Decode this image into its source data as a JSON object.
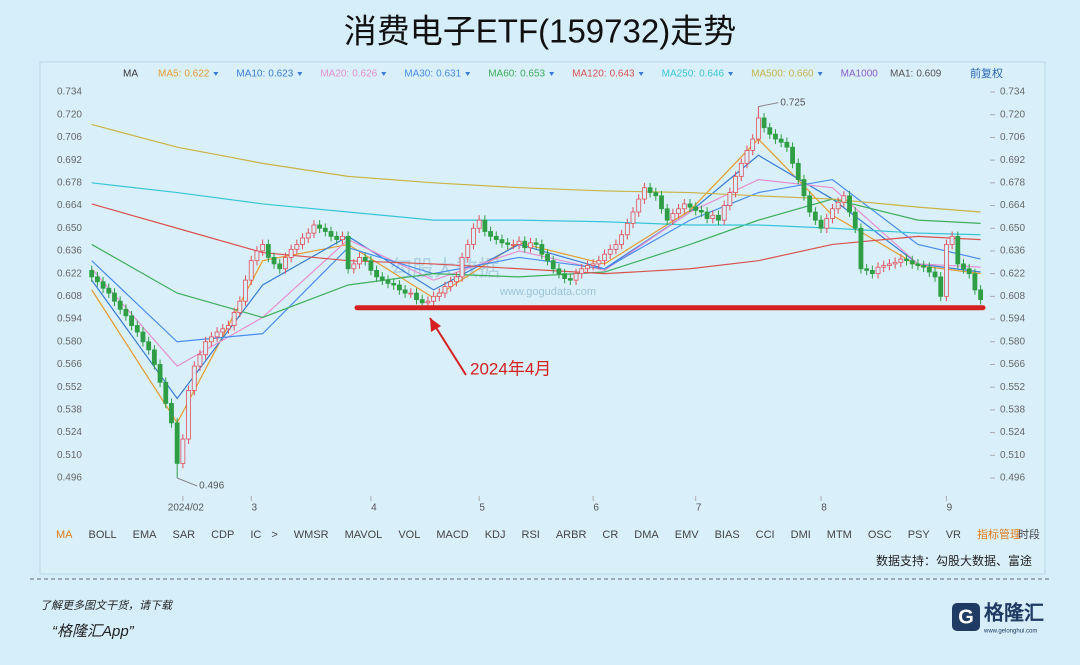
{
  "chart_data": {
    "type": "candlestick",
    "title": "消费电子ETF(159732)走势",
    "toolbar": {
      "adjust": "前复权",
      "ma1": {
        "name": "MA1:",
        "last": 0.609
      }
    },
    "xlim": [
      -1,
      158
    ],
    "ylim": [
      0.486,
      0.744
    ],
    "yticks": [
      0.496,
      {
        "value": 0.51,
        "label": "0.510"
      },
      0.524,
      0.538,
      0.552,
      0.566,
      {
        "value": 0.58,
        "label": "0.580"
      },
      0.594,
      0.608,
      0.622,
      0.636,
      {
        "value": 0.65,
        "label": "0.650"
      },
      0.664,
      0.678,
      0.692,
      0.706,
      {
        "value": 0.72,
        "label": "0.720"
      },
      0.734
    ],
    "xticks": [
      {
        "value": 16,
        "label": "2024/02"
      },
      {
        "value": 28,
        "label": "3"
      },
      {
        "value": 49,
        "label": "4"
      },
      {
        "value": 68,
        "label": "5"
      },
      {
        "value": 88,
        "label": "6"
      },
      {
        "value": 106,
        "label": "7"
      },
      {
        "value": 128,
        "label": "8"
      },
      {
        "value": 150,
        "label": "9"
      }
    ],
    "up_color": "#e0505a",
    "down_color": "#2f9e44",
    "candles": [
      [
        0.624,
        0.627,
        0.617,
        0.62
      ],
      [
        0.62,
        0.623,
        0.614,
        0.617
      ],
      [
        0.617,
        0.62,
        0.61,
        0.613
      ],
      [
        0.613,
        0.616,
        0.607,
        0.61
      ],
      [
        0.61,
        0.613,
        0.602,
        0.605
      ],
      [
        0.605,
        0.608,
        0.597,
        0.6
      ],
      [
        0.6,
        0.603,
        0.593,
        0.596
      ],
      [
        0.596,
        0.599,
        0.587,
        0.59
      ],
      [
        0.59,
        0.593,
        0.583,
        0.586
      ],
      [
        0.586,
        0.589,
        0.577,
        0.58
      ],
      [
        0.58,
        0.583,
        0.572,
        0.575
      ],
      [
        0.575,
        0.578,
        0.563,
        0.566
      ],
      [
        0.566,
        0.569,
        0.552,
        0.555
      ],
      [
        0.555,
        0.558,
        0.539,
        0.542
      ],
      [
        0.542,
        0.545,
        0.527,
        0.53
      ],
      [
        0.53,
        0.533,
        0.496,
        0.505
      ],
      [
        0.505,
        0.523,
        0.502,
        0.52
      ],
      [
        0.52,
        0.553,
        0.517,
        0.55
      ],
      [
        0.55,
        0.568,
        0.547,
        0.565
      ],
      [
        0.565,
        0.575,
        0.562,
        0.572
      ],
      [
        0.572,
        0.583,
        0.569,
        0.58
      ],
      [
        0.58,
        0.586,
        0.577,
        0.583
      ],
      [
        0.583,
        0.589,
        0.58,
        0.586
      ],
      [
        0.586,
        0.591,
        0.583,
        0.588
      ],
      [
        0.588,
        0.593,
        0.585,
        0.59
      ],
      [
        0.59,
        0.601,
        0.587,
        0.598
      ],
      [
        0.598,
        0.608,
        0.595,
        0.605
      ],
      [
        0.605,
        0.621,
        0.602,
        0.618
      ],
      [
        0.618,
        0.633,
        0.615,
        0.63
      ],
      [
        0.63,
        0.639,
        0.627,
        0.636
      ],
      [
        0.636,
        0.643,
        0.633,
        0.64
      ],
      [
        0.64,
        0.643,
        0.629,
        0.632
      ],
      [
        0.632,
        0.635,
        0.625,
        0.628
      ],
      [
        0.628,
        0.631,
        0.622,
        0.625
      ],
      [
        0.625,
        0.635,
        0.622,
        0.632
      ],
      [
        0.632,
        0.64,
        0.629,
        0.637
      ],
      [
        0.637,
        0.643,
        0.634,
        0.64
      ],
      [
        0.64,
        0.647,
        0.637,
        0.644
      ],
      [
        0.644,
        0.65,
        0.641,
        0.647
      ],
      [
        0.647,
        0.655,
        0.644,
        0.652
      ],
      [
        0.652,
        0.655,
        0.647,
        0.65
      ],
      [
        0.65,
        0.653,
        0.645,
        0.648
      ],
      [
        0.648,
        0.651,
        0.642,
        0.645
      ],
      [
        0.645,
        0.648,
        0.64,
        0.643
      ],
      [
        0.643,
        0.648,
        0.64,
        0.645
      ],
      [
        0.645,
        0.648,
        0.622,
        0.625
      ],
      [
        0.625,
        0.631,
        0.622,
        0.628
      ],
      [
        0.628,
        0.635,
        0.625,
        0.632
      ],
      [
        0.632,
        0.635,
        0.627,
        0.63
      ],
      [
        0.63,
        0.633,
        0.621,
        0.624
      ],
      [
        0.624,
        0.627,
        0.617,
        0.62
      ],
      [
        0.62,
        0.623,
        0.615,
        0.618
      ],
      [
        0.618,
        0.621,
        0.613,
        0.616
      ],
      [
        0.616,
        0.619,
        0.612,
        0.615
      ],
      [
        0.615,
        0.618,
        0.609,
        0.612
      ],
      [
        0.612,
        0.615,
        0.607,
        0.61
      ],
      [
        0.61,
        0.613,
        0.607,
        0.61
      ],
      [
        0.61,
        0.613,
        0.603,
        0.606
      ],
      [
        0.606,
        0.609,
        0.601,
        0.604
      ],
      [
        0.604,
        0.608,
        0.601,
        0.605
      ],
      [
        0.605,
        0.611,
        0.602,
        0.608
      ],
      [
        0.608,
        0.613,
        0.605,
        0.61
      ],
      [
        0.61,
        0.617,
        0.607,
        0.614
      ],
      [
        0.614,
        0.62,
        0.611,
        0.617
      ],
      [
        0.617,
        0.623,
        0.614,
        0.62
      ],
      [
        0.62,
        0.635,
        0.617,
        0.632
      ],
      [
        0.632,
        0.643,
        0.629,
        0.64
      ],
      [
        0.64,
        0.653,
        0.637,
        0.65
      ],
      [
        0.65,
        0.658,
        0.647,
        0.655
      ],
      [
        0.655,
        0.658,
        0.645,
        0.648
      ],
      [
        0.648,
        0.651,
        0.642,
        0.645
      ],
      [
        0.645,
        0.648,
        0.64,
        0.643
      ],
      [
        0.643,
        0.646,
        0.638,
        0.641
      ],
      [
        0.641,
        0.644,
        0.637,
        0.64
      ],
      [
        0.64,
        0.643,
        0.637,
        0.64
      ],
      [
        0.64,
        0.645,
        0.637,
        0.642
      ],
      [
        0.642,
        0.645,
        0.635,
        0.638
      ],
      [
        0.638,
        0.644,
        0.635,
        0.641
      ],
      [
        0.641,
        0.644,
        0.637,
        0.64
      ],
      [
        0.64,
        0.643,
        0.631,
        0.634
      ],
      [
        0.634,
        0.637,
        0.627,
        0.63
      ],
      [
        0.63,
        0.633,
        0.622,
        0.625
      ],
      [
        0.625,
        0.628,
        0.619,
        0.622
      ],
      [
        0.622,
        0.625,
        0.616,
        0.619
      ],
      [
        0.619,
        0.622,
        0.615,
        0.618
      ],
      [
        0.618,
        0.625,
        0.615,
        0.622
      ],
      [
        0.622,
        0.628,
        0.619,
        0.625
      ],
      [
        0.625,
        0.63,
        0.622,
        0.627
      ],
      [
        0.627,
        0.631,
        0.624,
        0.628
      ],
      [
        0.628,
        0.633,
        0.625,
        0.63
      ],
      [
        0.63,
        0.637,
        0.627,
        0.634
      ],
      [
        0.634,
        0.64,
        0.631,
        0.637
      ],
      [
        0.637,
        0.643,
        0.634,
        0.64
      ],
      [
        0.64,
        0.649,
        0.637,
        0.646
      ],
      [
        0.646,
        0.656,
        0.643,
        0.653
      ],
      [
        0.653,
        0.663,
        0.65,
        0.66
      ],
      [
        0.66,
        0.671,
        0.657,
        0.668
      ],
      [
        0.668,
        0.678,
        0.665,
        0.675
      ],
      [
        0.675,
        0.678,
        0.669,
        0.672
      ],
      [
        0.672,
        0.675,
        0.667,
        0.67
      ],
      [
        0.67,
        0.673,
        0.659,
        0.662
      ],
      [
        0.662,
        0.665,
        0.652,
        0.655
      ],
      [
        0.655,
        0.662,
        0.652,
        0.659
      ],
      [
        0.659,
        0.665,
        0.656,
        0.662
      ],
      [
        0.662,
        0.668,
        0.659,
        0.665
      ],
      [
        0.665,
        0.668,
        0.66,
        0.663
      ],
      [
        0.663,
        0.666,
        0.658,
        0.661
      ],
      [
        0.661,
        0.664,
        0.657,
        0.66
      ],
      [
        0.66,
        0.663,
        0.653,
        0.656
      ],
      [
        0.656,
        0.661,
        0.653,
        0.658
      ],
      [
        0.658,
        0.661,
        0.652,
        0.655
      ],
      [
        0.655,
        0.667,
        0.652,
        0.664
      ],
      [
        0.664,
        0.675,
        0.661,
        0.672
      ],
      [
        0.672,
        0.685,
        0.669,
        0.682
      ],
      [
        0.682,
        0.693,
        0.679,
        0.69
      ],
      [
        0.69,
        0.701,
        0.687,
        0.698
      ],
      [
        0.698,
        0.708,
        0.695,
        0.705
      ],
      [
        0.705,
        0.725,
        0.702,
        0.718
      ],
      [
        0.718,
        0.721,
        0.709,
        0.712
      ],
      [
        0.712,
        0.715,
        0.705,
        0.708
      ],
      [
        0.708,
        0.711,
        0.702,
        0.705
      ],
      [
        0.705,
        0.708,
        0.7,
        0.703
      ],
      [
        0.703,
        0.706,
        0.697,
        0.7
      ],
      [
        0.7,
        0.703,
        0.687,
        0.69
      ],
      [
        0.69,
        0.693,
        0.677,
        0.68
      ],
      [
        0.68,
        0.683,
        0.667,
        0.67
      ],
      [
        0.67,
        0.673,
        0.657,
        0.66
      ],
      [
        0.66,
        0.663,
        0.652,
        0.655
      ],
      [
        0.655,
        0.658,
        0.647,
        0.65
      ],
      [
        0.65,
        0.659,
        0.647,
        0.656
      ],
      [
        0.656,
        0.665,
        0.653,
        0.662
      ],
      [
        0.662,
        0.669,
        0.659,
        0.666
      ],
      [
        0.666,
        0.673,
        0.663,
        0.67
      ],
      [
        0.67,
        0.673,
        0.657,
        0.66
      ],
      [
        0.66,
        0.663,
        0.647,
        0.65
      ],
      [
        0.65,
        0.653,
        0.622,
        0.625
      ],
      [
        0.625,
        0.628,
        0.621,
        0.624
      ],
      [
        0.624,
        0.627,
        0.619,
        0.622
      ],
      [
        0.622,
        0.629,
        0.619,
        0.626
      ],
      [
        0.626,
        0.63,
        0.623,
        0.627
      ],
      [
        0.627,
        0.631,
        0.624,
        0.628
      ],
      [
        0.628,
        0.632,
        0.625,
        0.629
      ],
      [
        0.629,
        0.634,
        0.626,
        0.631
      ],
      [
        0.631,
        0.634,
        0.627,
        0.63
      ],
      [
        0.63,
        0.633,
        0.625,
        0.628
      ],
      [
        0.628,
        0.631,
        0.624,
        0.627
      ],
      [
        0.627,
        0.63,
        0.623,
        0.626
      ],
      [
        0.626,
        0.629,
        0.62,
        0.623
      ],
      [
        0.623,
        0.626,
        0.617,
        0.62
      ],
      [
        0.62,
        0.623,
        0.605,
        0.608
      ],
      [
        0.608,
        0.643,
        0.605,
        0.64
      ],
      [
        0.64,
        0.648,
        0.637,
        0.645
      ],
      [
        0.645,
        0.648,
        0.625,
        0.628
      ],
      [
        0.628,
        0.631,
        0.622,
        0.625
      ],
      [
        0.625,
        0.628,
        0.619,
        0.622
      ],
      [
        0.622,
        0.625,
        0.609,
        0.612
      ],
      [
        0.612,
        0.615,
        0.603,
        0.606
      ]
    ],
    "ma_x": [
      0,
      15,
      30,
      45,
      60,
      75,
      90,
      105,
      117,
      130,
      145,
      156
    ],
    "series": [
      {
        "name": "MA5:",
        "color": "#e59b2e",
        "last": 0.622,
        "values": [
          0.612,
          0.53,
          0.63,
          0.64,
          0.607,
          0.641,
          0.628,
          0.661,
          0.705,
          0.658,
          0.627,
          0.622
        ]
      },
      {
        "name": "MA10:",
        "color": "#3a7bd5",
        "last": 0.623,
        "values": [
          0.618,
          0.545,
          0.615,
          0.645,
          0.612,
          0.64,
          0.625,
          0.66,
          0.695,
          0.668,
          0.628,
          0.623
        ]
      },
      {
        "name": "MA20:",
        "color": "#e58fcf",
        "last": 0.626,
        "values": [
          0.625,
          0.565,
          0.595,
          0.643,
          0.618,
          0.636,
          0.624,
          0.66,
          0.68,
          0.675,
          0.628,
          0.626
        ]
      },
      {
        "name": "MA30:",
        "color": "#4a8cf0",
        "last": 0.631,
        "values": [
          0.63,
          0.58,
          0.585,
          0.638,
          0.622,
          0.632,
          0.625,
          0.655,
          0.672,
          0.68,
          0.64,
          0.631
        ]
      },
      {
        "name": "MA60:",
        "color": "#3fae5b",
        "last": 0.653,
        "values": [
          0.64,
          0.61,
          0.595,
          0.615,
          0.622,
          0.62,
          0.623,
          0.64,
          0.655,
          0.668,
          0.655,
          0.653
        ]
      },
      {
        "name": "MA120:",
        "color": "#d9534f",
        "last": 0.643,
        "values": [
          0.665,
          0.65,
          0.635,
          0.63,
          0.628,
          0.625,
          0.622,
          0.625,
          0.63,
          0.64,
          0.645,
          0.643
        ]
      },
      {
        "name": "MA250:",
        "color": "#39c5d8",
        "last": 0.646,
        "values": [
          0.678,
          0.672,
          0.665,
          0.66,
          0.655,
          0.655,
          0.654,
          0.652,
          0.652,
          0.65,
          0.647,
          0.646
        ]
      },
      {
        "name": "MA500:",
        "color": "#c9b445",
        "last": 0.66,
        "last_label": "0.660",
        "values": [
          0.714,
          0.7,
          0.69,
          0.682,
          0.678,
          0.675,
          0.673,
          0.672,
          0.67,
          0.668,
          0.663,
          0.66
        ]
      },
      {
        "name": "MA1000",
        "color": "#8a5cd0"
      }
    ],
    "support_level": 0.601,
    "annotation": "2024年4月",
    "watermark": {
      "name": "勾股大数据",
      "url": "www.gogudata.com"
    },
    "indicators": [
      "MA",
      "BOLL",
      "EMA",
      "SAR",
      "CDP",
      "IC",
      ">",
      "WMSR",
      "MAVOL",
      "VOL",
      "MACD",
      "KDJ",
      "RSI",
      "ARBR",
      "CR",
      "DMA",
      "EMV",
      "BIAS",
      "CCI",
      "DMI",
      "MTM",
      "OSC",
      "PSY",
      "VR",
      "指标管理",
      "时段"
    ],
    "source": "数据支持：勾股大数据、富途"
  },
  "footer": {
    "prompt": "了解更多图文干货，请下载",
    "app": "“格隆汇App”",
    "logo": "格隆汇",
    "site": "www.gelonghui.com"
  }
}
